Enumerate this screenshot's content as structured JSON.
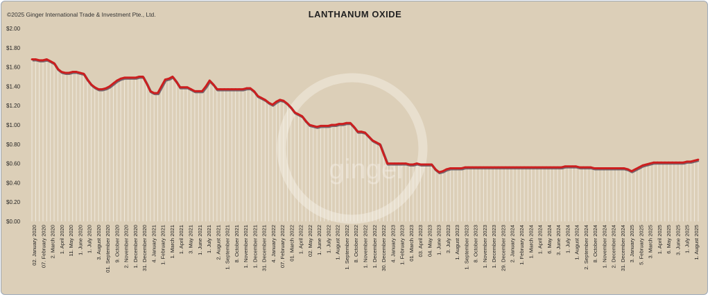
{
  "copyright": "©2025 Ginger International Trade & Investment Pte., Ltd.",
  "watermark": "ginger",
  "chart_data": {
    "type": "line",
    "title": "LANTHANUM OXIDE",
    "xlabel": "",
    "ylabel": "",
    "ylim": [
      0,
      2
    ],
    "yticks": [
      "$0.00",
      "$0.20",
      "$0.40",
      "$0.60",
      "$0.80",
      "$1.00",
      "$1.20",
      "$1.40",
      "$1.60",
      "$1.80",
      "$2.00"
    ],
    "line_color": "#cc1f1f",
    "background": "#dccfb8",
    "grid": false,
    "drop_lines": true,
    "x_labels_shown": [
      "02. January 2020",
      "07. February 2020",
      "2. March 2020",
      "1. April 2020",
      "11. May 2020",
      "1. June 2020",
      "1. July 2020",
      "3. August 2020",
      "01. September 2020",
      "9. October 2020",
      "2. November 2020",
      "1. December 2020",
      "31. December 2020",
      "4. January 2021",
      "1. February 2021",
      "1. March 2021",
      "1. April 2021",
      "3. May 2021",
      "1. June 2021",
      "1. July 2021",
      "2. August 2021",
      "1. September 2021",
      "8. October 2021",
      "1. November 2021",
      "1. December 2021",
      "31. December 2021",
      "4. January 2022",
      "07. February 2022",
      "01. March 2022",
      "1. April 2022",
      "02. May 2022",
      "1. June 2022",
      "1. July 2022",
      "1. August 2022",
      "1. September 2022",
      "8. October 2022",
      "1. November 2022",
      "1. December 2022",
      "30. December 2022",
      "4. January 2023",
      "1. February 2023",
      "01. March 2023",
      "03. April 2023",
      "04. May 2023",
      "1. June 2023",
      "3. July 2023",
      "1. August 2023",
      "1. September 2023",
      "8. October 2023",
      "1. November 2023",
      "1. December 2023",
      "29. December 2023",
      "2. January 2024",
      "1. February 2024",
      "1. March 2024",
      "1. April 2024",
      "6. May 2024",
      "3. June 2024",
      "1. July 2024",
      "1. August 2024",
      "2. September 2024",
      "8. October 2024",
      "1. November 2024",
      "2. December 2024",
      "31. December 2024",
      "3. January 2025",
      "5. February 2025",
      "3. March 2025",
      "1. April 2025",
      "6. May 2025",
      "3. June 2025",
      "1. July 2025",
      "1. August 2025"
    ],
    "values": [
      1.68,
      1.68,
      1.67,
      1.67,
      1.68,
      1.66,
      1.64,
      1.58,
      1.55,
      1.54,
      1.54,
      1.55,
      1.55,
      1.54,
      1.53,
      1.47,
      1.42,
      1.39,
      1.37,
      1.37,
      1.38,
      1.4,
      1.43,
      1.46,
      1.48,
      1.49,
      1.49,
      1.49,
      1.49,
      1.5,
      1.5,
      1.43,
      1.35,
      1.33,
      1.33,
      1.4,
      1.47,
      1.48,
      1.5,
      1.45,
      1.39,
      1.39,
      1.39,
      1.37,
      1.35,
      1.35,
      1.35,
      1.4,
      1.46,
      1.42,
      1.37,
      1.37,
      1.37,
      1.37,
      1.37,
      1.37,
      1.37,
      1.37,
      1.38,
      1.38,
      1.35,
      1.3,
      1.28,
      1.26,
      1.23,
      1.21,
      1.24,
      1.26,
      1.25,
      1.22,
      1.18,
      1.13,
      1.11,
      1.09,
      1.04,
      1.0,
      0.99,
      0.98,
      0.99,
      0.99,
      0.99,
      1.0,
      1.0,
      1.01,
      1.01,
      1.02,
      1.02,
      0.98,
      0.93,
      0.93,
      0.92,
      0.88,
      0.84,
      0.82,
      0.8,
      0.7,
      0.6,
      0.6,
      0.6,
      0.6,
      0.6,
      0.6,
      0.59,
      0.59,
      0.6,
      0.59,
      0.59,
      0.59,
      0.59,
      0.54,
      0.51,
      0.52,
      0.54,
      0.55,
      0.55,
      0.55,
      0.55,
      0.56,
      0.56,
      0.56,
      0.56,
      0.56,
      0.56,
      0.56,
      0.56,
      0.56,
      0.56,
      0.56,
      0.56,
      0.56,
      0.56,
      0.56,
      0.56,
      0.56,
      0.56,
      0.56,
      0.56,
      0.56,
      0.56,
      0.56,
      0.56,
      0.56,
      0.56,
      0.56,
      0.57,
      0.57,
      0.57,
      0.57,
      0.56,
      0.56,
      0.56,
      0.56,
      0.55,
      0.55,
      0.55,
      0.55,
      0.55,
      0.55,
      0.55,
      0.55,
      0.55,
      0.54,
      0.52,
      0.54,
      0.56,
      0.58,
      0.59,
      0.6,
      0.61,
      0.61,
      0.61,
      0.61,
      0.61,
      0.61,
      0.61,
      0.61,
      0.61,
      0.62,
      0.62,
      0.63,
      0.64
    ]
  }
}
